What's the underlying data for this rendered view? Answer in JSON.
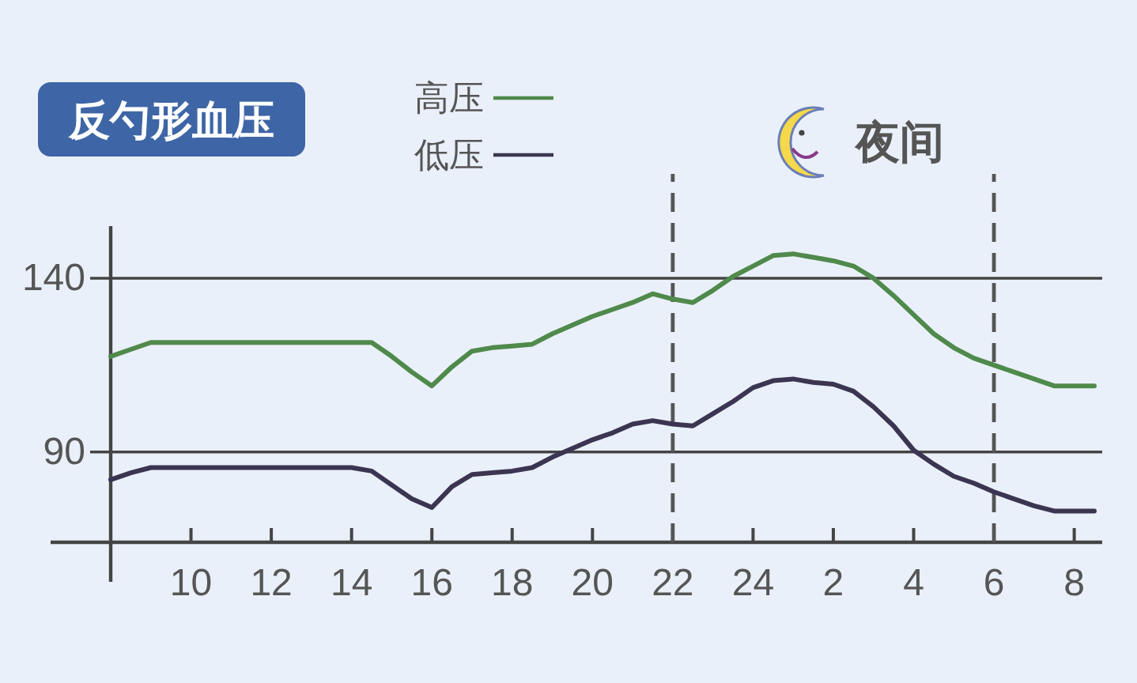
{
  "chart_data": {
    "type": "line",
    "title": "反勺形血压",
    "legend": "top",
    "grid": "y",
    "categories": [
      null,
      null,
      null,
      null,
      "10",
      null,
      null,
      null,
      "12",
      null,
      null,
      null,
      "14",
      null,
      null,
      null,
      "16",
      null,
      null,
      null,
      "18",
      null,
      null,
      null,
      "20",
      null,
      null,
      null,
      "22",
      null,
      null,
      null,
      "24",
      null,
      null,
      null,
      "2",
      null,
      null,
      null,
      "4",
      null,
      null,
      null,
      "6",
      null,
      null,
      null,
      "8",
      null
    ],
    "series": [
      {
        "name": "高压",
        "color": "#4f8a4c",
        "values": [
          117.5,
          119.5,
          121.5,
          121.5,
          121.5,
          121.5,
          121.5,
          121.5,
          121.5,
          121.5,
          121.5,
          121.5,
          121.5,
          121.5,
          117.5,
          113,
          109,
          114.5,
          119,
          120,
          120.5,
          121,
          124,
          126.5,
          129,
          131,
          133,
          135.5,
          134,
          133,
          136.5,
          140.5,
          143.5,
          146.5,
          147,
          146,
          145,
          143.5,
          140,
          135,
          129.5,
          124,
          120,
          117,
          115,
          113,
          111,
          109,
          109,
          109
        ]
      },
      {
        "name": "低压",
        "color": "#3b3552",
        "values": [
          82,
          84,
          85.5,
          85.5,
          85.5,
          85.5,
          85.5,
          85.5,
          85.5,
          85.5,
          85.5,
          85.5,
          85.5,
          84.5,
          80.5,
          76.5,
          74,
          80,
          83.5,
          84,
          84.5,
          85.5,
          88.5,
          91,
          93.5,
          95.5,
          98,
          99,
          98,
          97.5,
          101,
          104.5,
          108.5,
          110.5,
          111,
          110,
          109.5,
          107.5,
          103,
          97.5,
          90.5,
          86.5,
          83,
          81,
          78.5,
          76.5,
          74.5,
          73,
          73,
          73
        ]
      }
    ],
    "ylim": [
      64,
      155
    ],
    "yticks": [
      90,
      140
    ],
    "ref_lines": [
      {
        "axis": "x",
        "value": "22",
        "color": "#555555",
        "line_style": "dashed"
      },
      {
        "axis": "x",
        "value": "6",
        "color": "#555555",
        "line_style": "dashed"
      }
    ],
    "annotations": [
      "夜间"
    ]
  }
}
